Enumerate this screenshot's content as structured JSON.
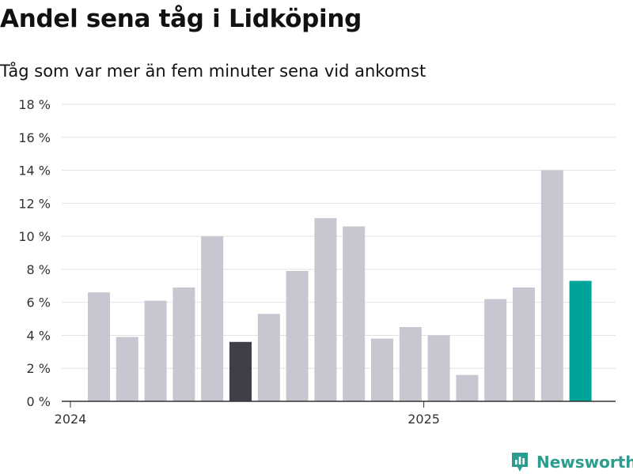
{
  "chart_data": {
    "type": "bar",
    "title": "Andel sena tåg i Lidköping",
    "subtitle": "Tåg som var mer än fem minuter sena vid ankomst",
    "xlabel": "",
    "ylabel": "",
    "categories": [
      "2024-01",
      "2024-02",
      "2024-03",
      "2024-04",
      "2024-05",
      "2024-06",
      "2024-07",
      "2024-08",
      "2024-09",
      "2024-10",
      "2024-11",
      "2024-12",
      "2025-01",
      "2025-02",
      "2025-03",
      "2025-04",
      "2025-05",
      "2025-06"
    ],
    "values": [
      6.6,
      3.9,
      6.1,
      6.9,
      10.0,
      3.6,
      5.3,
      7.9,
      11.1,
      10.6,
      3.8,
      4.5,
      4.0,
      1.6,
      6.2,
      6.9,
      14.0,
      7.3
    ],
    "ylim": [
      0,
      18
    ],
    "yticks": [
      0,
      2,
      4,
      6,
      8,
      10,
      12,
      14,
      16,
      18
    ],
    "ytick_suffix": " %",
    "xticks": [
      {
        "label": "2024",
        "at": "2024-01"
      },
      {
        "label": "2025",
        "at": "2025-01"
      }
    ],
    "grid": true,
    "highlight": {
      "2024-06": "#3f3e4a",
      "2025-06": "#00a39a"
    },
    "colors": {
      "default_bar": "#c8c7d1",
      "grid": "#e2e2e2",
      "axis": "#333333",
      "text": "#333333"
    }
  },
  "brand": {
    "name": "Newsworthy",
    "color": "#2a9d8f",
    "icon": "bar-chart-badge-icon"
  }
}
